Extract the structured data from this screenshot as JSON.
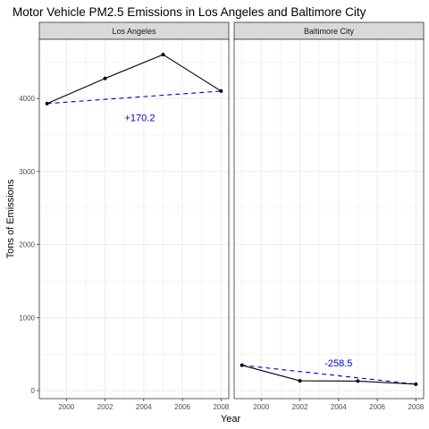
{
  "chart_data": {
    "type": "line",
    "title": "Motor Vehicle PM2.5 Emissions in Los Angeles and Baltimore City",
    "xlabel": "Year",
    "ylabel": "Tons of Emissions",
    "x_ticks": [
      2000,
      2002,
      2004,
      2006,
      2008
    ],
    "y_ticks": [
      0,
      1000,
      2000,
      3000,
      4000
    ],
    "xlim": [
      1998.6,
      2008.4
    ],
    "ylim": [
      -110,
      4810
    ],
    "grid": true,
    "colors": {
      "line": "#000000",
      "trend": "#0000cc",
      "annotation": "#0000cc",
      "strip_fill": "#d9d9d9",
      "grid": "#ebebeb"
    },
    "panels": [
      {
        "name": "Los Angeles",
        "x": [
          1999,
          2002,
          2005,
          2008
        ],
        "y": [
          3931,
          4274,
          4601,
          4101
        ],
        "trend": {
          "x": [
            1999,
            2008
          ],
          "y": [
            3931,
            4101
          ]
        },
        "annotation": {
          "text": "+170.2",
          "x": 2003.8,
          "y": 3740
        }
      },
      {
        "name": "Baltimore City",
        "x": [
          1999,
          2002,
          2005,
          2008
        ],
        "y": [
          347,
          134,
          130,
          88
        ],
        "trend": {
          "x": [
            1999,
            2008
          ],
          "y": [
            347,
            88
          ]
        },
        "annotation": {
          "text": "-258.5",
          "x": 2004.0,
          "y": 380
        }
      }
    ]
  }
}
